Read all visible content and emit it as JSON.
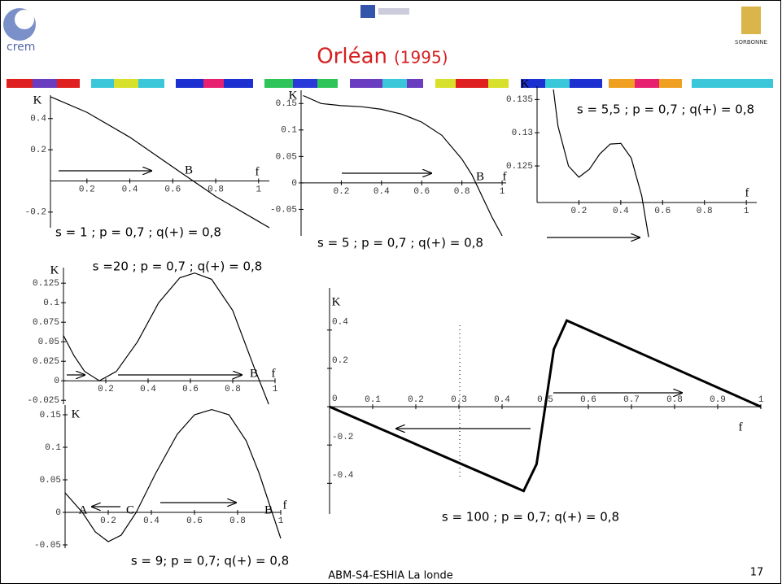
{
  "header": {
    "title": "Orléan",
    "title_year": "(1995)",
    "logo_left": "crem",
    "logo_right": "SORBONNE"
  },
  "footer": {
    "text": "ABM-S4-ESHIA La londe",
    "page": "17"
  },
  "chart_data": [
    {
      "type": "line",
      "caption": "s = 1 ;  p = 0,7 ; q(+) = 0,8",
      "x_label": "f",
      "y_label": "K",
      "annotations": [
        "B"
      ],
      "xlim": [
        0.03,
        1.05
      ],
      "ylim": [
        -0.3,
        0.55
      ],
      "xticks": [
        0.2,
        0.4,
        0.6,
        0.8,
        1
      ],
      "yticks": [
        -0.2,
        0.2,
        0.4
      ],
      "color": "#000",
      "x": [
        0.03,
        0.2,
        0.4,
        0.6,
        0.8,
        1.0,
        1.05
      ],
      "values": [
        0.54,
        0.44,
        0.28,
        0.09,
        -0.1,
        -0.26,
        -0.3
      ]
    },
    {
      "type": "line",
      "caption": "s = 5 ;  p = 0,7 ; q(+) = 0,8",
      "x_label": "f",
      "y_label": "K",
      "annotations": [
        "B"
      ],
      "xlim": [
        0,
        1.02
      ],
      "ylim": [
        -0.1,
        0.175
      ],
      "xticks": [
        0.2,
        0.4,
        0.6,
        0.8,
        1
      ],
      "yticks": [
        -0.05,
        0,
        0.05,
        0.1,
        0.15
      ],
      "color": "#000",
      "x": [
        0.01,
        0.1,
        0.2,
        0.3,
        0.4,
        0.5,
        0.6,
        0.7,
        0.8,
        0.85,
        0.9,
        0.95,
        1.0
      ],
      "values": [
        0.165,
        0.15,
        0.146,
        0.144,
        0.139,
        0.13,
        0.115,
        0.09,
        0.045,
        0.015,
        -0.025,
        -0.065,
        -0.1
      ]
    },
    {
      "type": "line",
      "caption": "s = 5,5 ;  p = 0,7 ; q(+) = 0,8",
      "x_label": "f",
      "y_label": "K",
      "annotations": [],
      "xlim": [
        0,
        1.05
      ],
      "ylim": [
        0.1195,
        0.137
      ],
      "xticks": [
        0.2,
        0.4,
        0.6,
        0.8,
        1
      ],
      "yticks": [
        0.125,
        0.13,
        0.135
      ],
      "color": "#000",
      "x": [
        0.078,
        0.1,
        0.15,
        0.2,
        0.25,
        0.3,
        0.35,
        0.4,
        0.45,
        0.5,
        0.533
      ],
      "values": [
        0.1365,
        0.131,
        0.125,
        0.1233,
        0.1245,
        0.1268,
        0.1283,
        0.1284,
        0.1262,
        0.1205,
        0.1143
      ]
    },
    {
      "type": "line",
      "caption": "s =20 ; p = 0,7 ; q(+) = 0,8",
      "x_label": "f",
      "y_label": "K",
      "annotations": [
        "B"
      ],
      "xlim": [
        0,
        1.0
      ],
      "ylim": [
        -0.03,
        0.145
      ],
      "xticks": [
        0.2,
        0.4,
        0.6,
        0.8,
        1
      ],
      "yticks": [
        -0.025,
        0,
        0.025,
        0.05,
        0.075,
        0.1,
        0.125
      ],
      "color": "#000",
      "x": [
        0,
        0.05,
        0.1,
        0.17,
        0.25,
        0.35,
        0.45,
        0.55,
        0.62,
        0.7,
        0.8,
        0.9,
        0.97
      ],
      "values": [
        0.058,
        0.032,
        0.012,
        0,
        0.012,
        0.05,
        0.1,
        0.132,
        0.138,
        0.13,
        0.09,
        0.018,
        -0.03
      ]
    },
    {
      "type": "line",
      "caption": "s = 9; p = 0,7; q(+) = 0,8",
      "x_label": "f",
      "y_label": "K",
      "annotations": [
        "A",
        "C",
        "B"
      ],
      "xlim": [
        0,
        1.0
      ],
      "ylim": [
        -0.055,
        0.165
      ],
      "xticks": [
        0.2,
        0.4,
        0.6,
        0.8,
        1
      ],
      "yticks": [
        -0.05,
        0,
        0.05,
        0.1,
        0.15
      ],
      "color": "#000",
      "x": [
        0,
        0.08,
        0.14,
        0.2,
        0.26,
        0.33,
        0.42,
        0.52,
        0.6,
        0.68,
        0.76,
        0.84,
        0.9,
        0.96,
        1.0
      ],
      "values": [
        0.03,
        0,
        -0.03,
        -0.045,
        -0.035,
        0,
        0.06,
        0.12,
        0.15,
        0.158,
        0.15,
        0.11,
        0.06,
        0,
        -0.04
      ]
    },
    {
      "type": "line",
      "caption": "s = 100 ; p = 0,7; q(+) = 0,8",
      "x_label": "f",
      "y_label": "K",
      "annotations": [],
      "xlim": [
        0,
        1.0
      ],
      "ylim": [
        -0.56,
        0.62
      ],
      "xticks": [
        0.1,
        0.2,
        0.3,
        0.4,
        0.5,
        0.6,
        0.7,
        0.8,
        0.9,
        1
      ],
      "yticks": [
        -0.4,
        -0.2,
        0,
        0.2,
        0.4
      ],
      "color": "#000",
      "x": [
        0,
        0.45,
        0.48,
        0.5,
        0.52,
        0.55,
        1.0
      ],
      "values": [
        0,
        -0.44,
        -0.3,
        0,
        0.3,
        0.45,
        0
      ]
    }
  ]
}
